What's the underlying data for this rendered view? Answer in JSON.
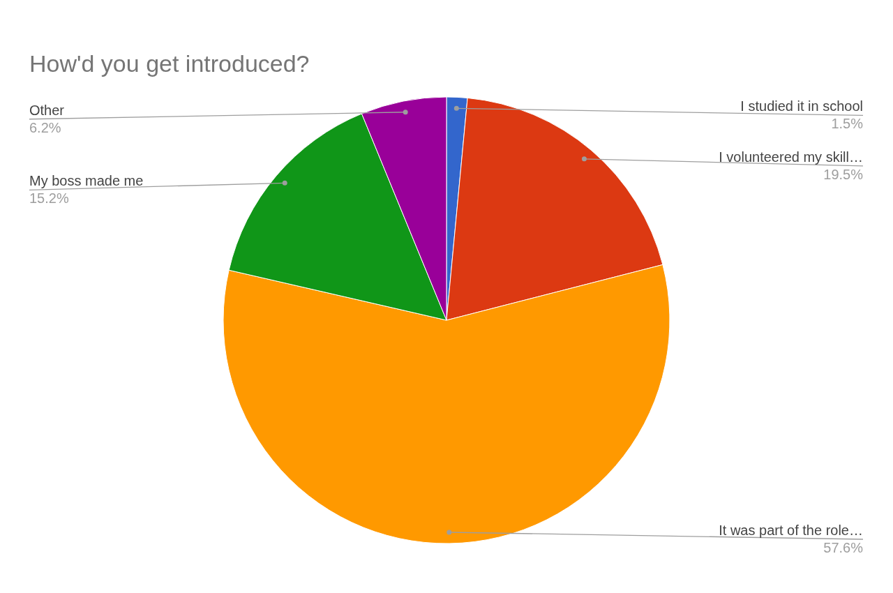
{
  "chart_data": {
    "type": "pie",
    "title": "How'd you get introduced?",
    "categories": [
      "I studied it in school",
      "I volunteered my skill…",
      "It was part of the role…",
      "My boss made me",
      "Other"
    ],
    "values": [
      1.5,
      19.5,
      57.6,
      15.2,
      6.2
    ],
    "value_labels": [
      "1.5%",
      "19.5%",
      "57.6%",
      "15.2%",
      "6.2%"
    ],
    "colors": [
      "#3366cc",
      "#dc3912",
      "#ff9900",
      "#109618",
      "#990099"
    ],
    "legend": false
  }
}
